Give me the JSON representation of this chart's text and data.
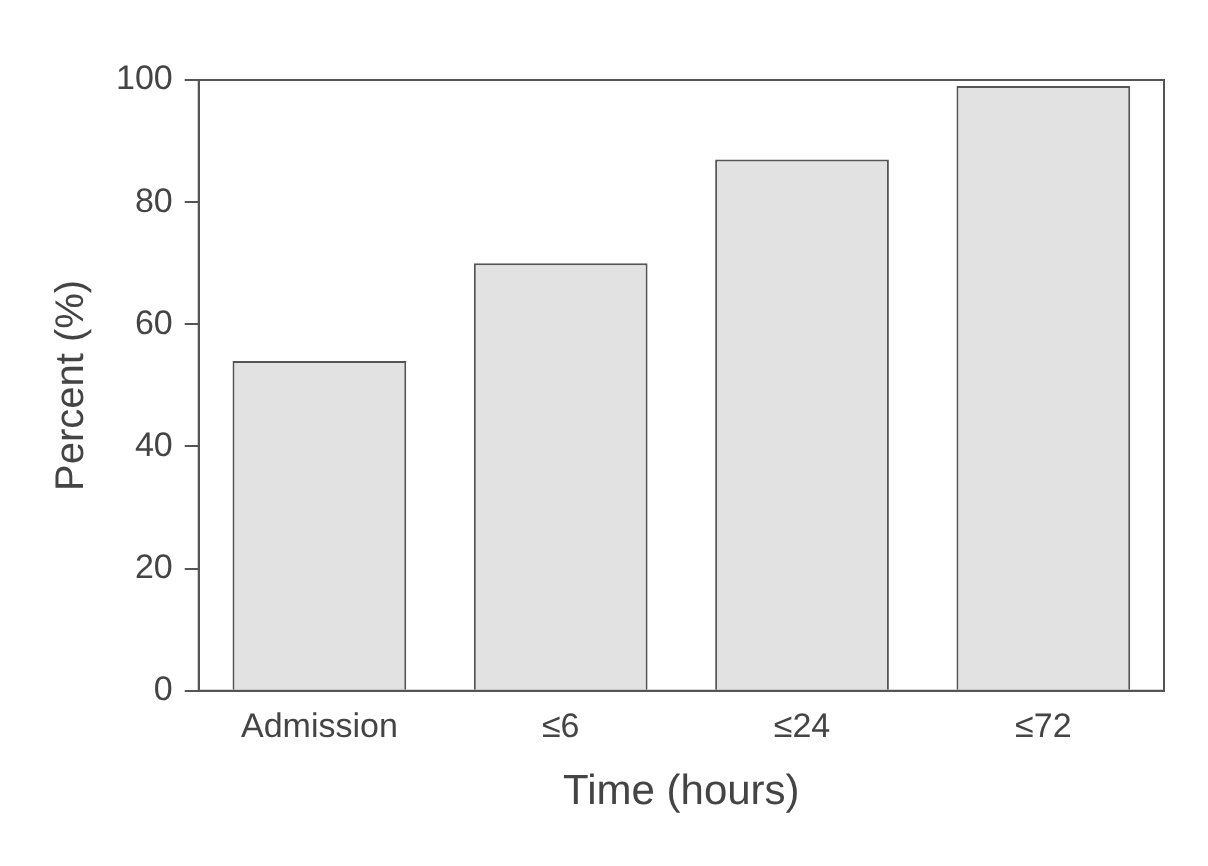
{
  "chart_data": {
    "type": "bar",
    "xlabel": "Time (hours)",
    "ylabel": "Percent (%)",
    "categories": [
      "Admission",
      "≤6",
      "≤24",
      "≤72"
    ],
    "values": [
      54,
      70,
      87,
      99
    ],
    "color": "#e2e2e2",
    "ylim": [
      0,
      100
    ],
    "yticks": [
      0,
      20,
      40,
      60,
      80,
      100
    ],
    "grid": false,
    "legend": false
  }
}
